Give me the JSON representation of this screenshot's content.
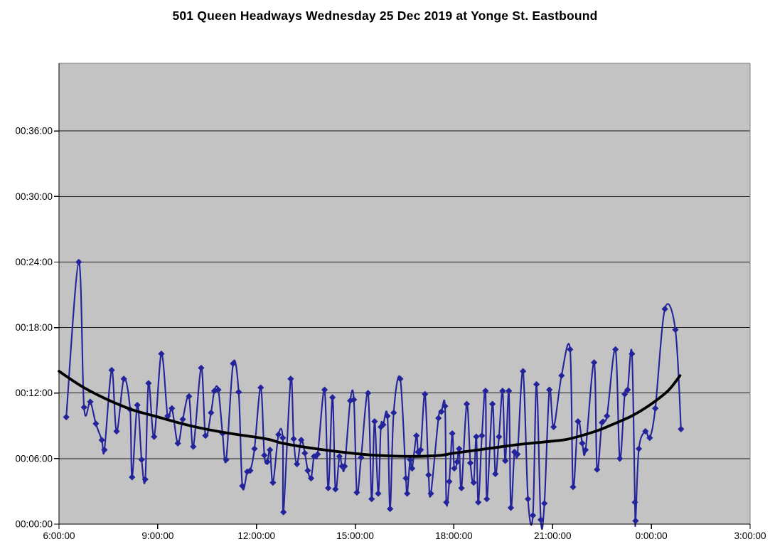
{
  "title": "501 Queen Headways Wednesday 25 Dec 2019 at Yonge St. Eastbound",
  "chart_data": {
    "type": "line",
    "title": "501 Queen Headways Wednesday 25 Dec 2019 at Yonge St. Eastbound",
    "legend": "none",
    "grid": "horizontal",
    "colors": {
      "page_background": "#FFFFFF",
      "plot_background": "#C3C3C3",
      "gridline": "#1a1a1a",
      "plot_border": "#828282",
      "axis": "#000000",
      "series": "#23239B",
      "trend": "#000000",
      "title": "#000000"
    },
    "x_axis": {
      "tick_labels": [
        "6:00:00",
        "9:00:00",
        "12:00:00",
        "15:00:00",
        "18:00:00",
        "21:00:00",
        "0:00:00",
        "3:00:00"
      ],
      "tick_hours": [
        6,
        9,
        12,
        15,
        18,
        21,
        24,
        27
      ],
      "range_hours": [
        6,
        27
      ]
    },
    "y_axis": {
      "tick_labels": [
        "00:00:00",
        "00:06:00",
        "00:12:00",
        "00:18:00",
        "00:24:00",
        "00:30:00",
        "00:36:00"
      ],
      "tick_minutes": [
        0,
        6,
        12,
        18,
        24,
        30,
        36
      ],
      "range_minutes": [
        0,
        42.2
      ],
      "meaning": "headway hh:mm:ss"
    },
    "series": [
      {
        "name": "headways",
        "style": "smoothed-line-with-diamond-markers",
        "color": "#23239B",
        "points": [
          [
            6.22,
            9.8
          ],
          [
            6.6,
            24.0
          ],
          [
            6.76,
            10.7
          ],
          [
            6.95,
            11.2
          ],
          [
            7.12,
            9.2
          ],
          [
            7.3,
            7.7
          ],
          [
            7.38,
            6.8
          ],
          [
            7.6,
            14.1
          ],
          [
            7.75,
            8.5
          ],
          [
            7.97,
            13.3
          ],
          [
            8.16,
            10.5
          ],
          [
            8.22,
            4.3
          ],
          [
            8.38,
            10.9
          ],
          [
            8.51,
            5.9
          ],
          [
            8.62,
            4.1
          ],
          [
            8.72,
            12.9
          ],
          [
            8.89,
            8.0
          ],
          [
            9.11,
            15.6
          ],
          [
            9.3,
            9.9
          ],
          [
            9.43,
            10.6
          ],
          [
            9.61,
            7.4
          ],
          [
            9.76,
            9.6
          ],
          [
            9.95,
            11.7
          ],
          [
            10.08,
            7.1
          ],
          [
            10.32,
            14.3
          ],
          [
            10.45,
            8.1
          ],
          [
            10.62,
            10.2
          ],
          [
            10.72,
            12.2
          ],
          [
            10.84,
            12.3
          ],
          [
            10.97,
            8.3
          ],
          [
            11.08,
            5.9
          ],
          [
            11.29,
            14.7
          ],
          [
            11.46,
            12.1
          ],
          [
            11.57,
            3.5
          ],
          [
            11.72,
            4.8
          ],
          [
            11.81,
            4.9
          ],
          [
            11.94,
            6.9
          ],
          [
            12.13,
            12.5
          ],
          [
            12.24,
            6.3
          ],
          [
            12.33,
            5.7
          ],
          [
            12.41,
            6.8
          ],
          [
            12.5,
            3.8
          ],
          [
            12.67,
            8.2
          ],
          [
            12.8,
            7.9
          ],
          [
            12.82,
            1.1
          ],
          [
            13.04,
            13.3
          ],
          [
            13.13,
            7.8
          ],
          [
            13.23,
            5.5
          ],
          [
            13.36,
            7.7
          ],
          [
            13.47,
            6.5
          ],
          [
            13.56,
            4.9
          ],
          [
            13.66,
            4.2
          ],
          [
            13.75,
            6.2
          ],
          [
            13.86,
            6.4
          ],
          [
            14.07,
            12.3
          ],
          [
            14.18,
            3.3
          ],
          [
            14.31,
            11.6
          ],
          [
            14.4,
            3.2
          ],
          [
            14.52,
            6.2
          ],
          [
            14.6,
            5.3
          ],
          [
            14.68,
            5.3
          ],
          [
            14.85,
            11.3
          ],
          [
            14.96,
            11.4
          ],
          [
            15.05,
            2.9
          ],
          [
            15.18,
            6.1
          ],
          [
            15.39,
            12.0
          ],
          [
            15.5,
            2.3
          ],
          [
            15.59,
            9.4
          ],
          [
            15.7,
            2.8
          ],
          [
            15.78,
            8.9
          ],
          [
            15.85,
            9.1
          ],
          [
            15.98,
            9.9
          ],
          [
            16.06,
            1.4
          ],
          [
            16.17,
            10.2
          ],
          [
            16.37,
            13.3
          ],
          [
            16.54,
            4.2
          ],
          [
            16.58,
            2.8
          ],
          [
            16.67,
            5.9
          ],
          [
            16.73,
            5.1
          ],
          [
            16.86,
            8.1
          ],
          [
            16.91,
            6.6
          ],
          [
            16.99,
            6.8
          ],
          [
            17.12,
            11.9
          ],
          [
            17.23,
            4.5
          ],
          [
            17.3,
            2.8
          ],
          [
            17.53,
            9.7
          ],
          [
            17.62,
            10.3
          ],
          [
            17.73,
            10.8
          ],
          [
            17.77,
            2.0
          ],
          [
            17.86,
            3.9
          ],
          [
            17.95,
            8.3
          ],
          [
            18.01,
            5.1
          ],
          [
            18.1,
            5.7
          ],
          [
            18.16,
            6.9
          ],
          [
            18.23,
            3.3
          ],
          [
            18.39,
            11.0
          ],
          [
            18.5,
            5.6
          ],
          [
            18.6,
            3.8
          ],
          [
            18.68,
            8.0
          ],
          [
            18.74,
            2.0
          ],
          [
            18.85,
            8.1
          ],
          [
            18.96,
            12.2
          ],
          [
            19.0,
            2.3
          ],
          [
            19.17,
            11.0
          ],
          [
            19.26,
            4.6
          ],
          [
            19.37,
            8.0
          ],
          [
            19.48,
            12.2
          ],
          [
            19.56,
            5.8
          ],
          [
            19.67,
            12.2
          ],
          [
            19.73,
            1.5
          ],
          [
            19.84,
            6.6
          ],
          [
            19.93,
            6.4
          ],
          [
            20.1,
            14.0
          ],
          [
            20.25,
            2.3
          ],
          [
            20.4,
            0.8
          ],
          [
            20.51,
            12.8
          ],
          [
            20.64,
            0.4
          ],
          [
            20.75,
            1.9
          ],
          [
            20.9,
            12.3
          ],
          [
            21.03,
            8.9
          ],
          [
            21.27,
            13.6
          ],
          [
            21.53,
            16.0
          ],
          [
            21.62,
            3.4
          ],
          [
            21.77,
            9.4
          ],
          [
            21.9,
            7.4
          ],
          [
            22.0,
            6.8
          ],
          [
            22.26,
            14.8
          ],
          [
            22.35,
            5.0
          ],
          [
            22.5,
            9.3
          ],
          [
            22.65,
            9.9
          ],
          [
            22.91,
            16.0
          ],
          [
            23.04,
            6.0
          ],
          [
            23.19,
            11.9
          ],
          [
            23.28,
            12.3
          ],
          [
            23.41,
            15.6
          ],
          [
            23.5,
            2.0
          ],
          [
            23.52,
            0.3
          ],
          [
            23.62,
            6.9
          ],
          [
            23.82,
            8.5
          ],
          [
            23.95,
            7.9
          ],
          [
            24.12,
            10.6
          ],
          [
            24.41,
            19.7
          ],
          [
            24.73,
            17.8
          ],
          [
            24.9,
            8.7
          ]
        ]
      },
      {
        "name": "trend",
        "style": "smooth-thick-line",
        "color": "#000000",
        "points": [
          [
            6.0,
            14.0
          ],
          [
            6.7,
            12.6
          ],
          [
            7.4,
            11.5
          ],
          [
            8.2,
            10.5
          ],
          [
            8.9,
            9.9
          ],
          [
            10.0,
            9.0
          ],
          [
            11.0,
            8.4
          ],
          [
            12.3,
            7.8
          ],
          [
            12.8,
            7.4
          ],
          [
            13.8,
            6.9
          ],
          [
            15.2,
            6.4
          ],
          [
            16.0,
            6.25
          ],
          [
            16.8,
            6.2
          ],
          [
            17.6,
            6.3
          ],
          [
            18.0,
            6.5
          ],
          [
            19.0,
            6.9
          ],
          [
            20.0,
            7.3
          ],
          [
            21.0,
            7.6
          ],
          [
            21.5,
            7.8
          ],
          [
            22.3,
            8.5
          ],
          [
            22.8,
            9.1
          ],
          [
            23.4,
            9.9
          ],
          [
            23.9,
            10.8
          ],
          [
            24.5,
            12.2
          ],
          [
            24.87,
            13.6
          ]
        ]
      }
    ]
  }
}
